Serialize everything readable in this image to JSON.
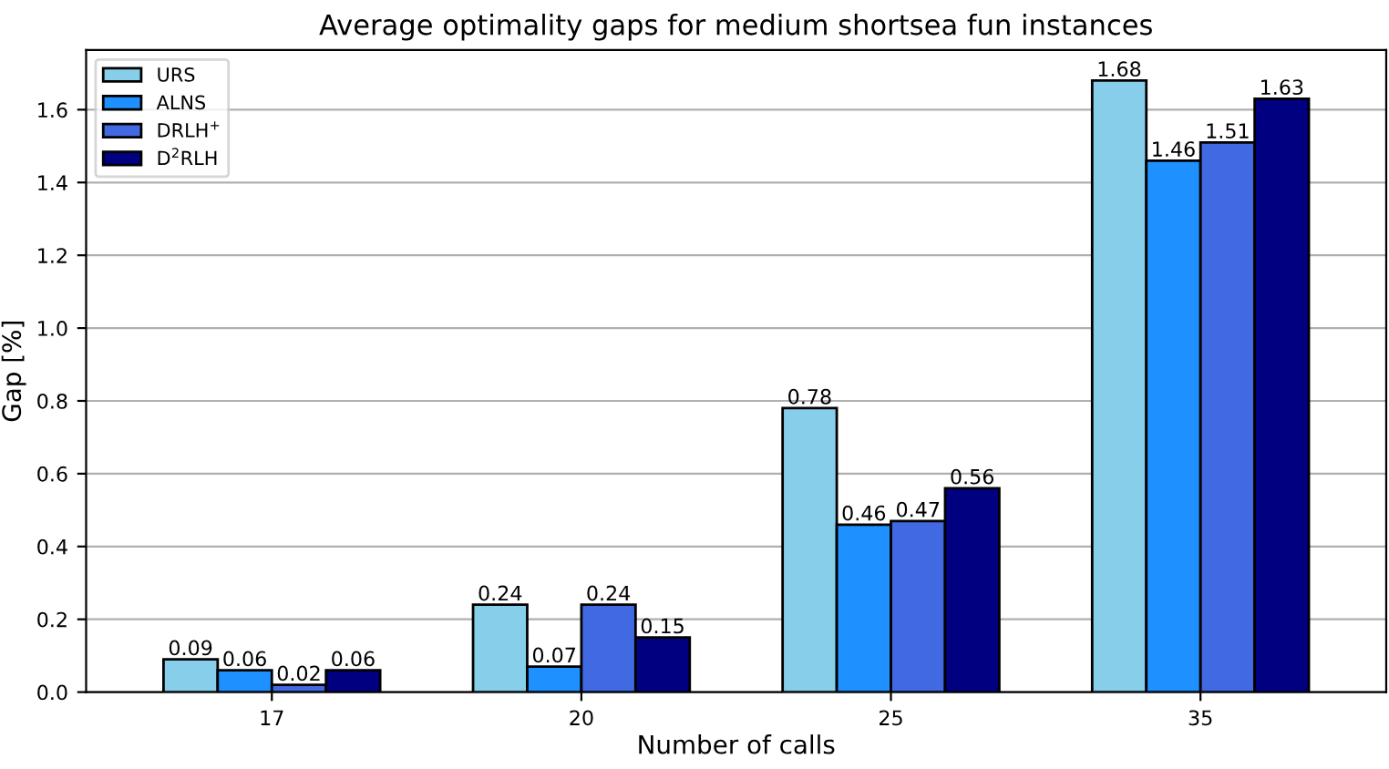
{
  "chart_data": {
    "type": "bar",
    "title": "Average optimality gaps for medium shortsea fun instances",
    "xlabel": "Number of calls",
    "ylabel": "Gap [%]",
    "categories": [
      "17",
      "20",
      "25",
      "35"
    ],
    "series": [
      {
        "name": "URS",
        "color": "#87ceeb",
        "values": [
          0.09,
          0.24,
          0.78,
          1.68
        ]
      },
      {
        "name": "ALNS",
        "color": "#1e90ff",
        "values": [
          0.06,
          0.07,
          0.46,
          1.46
        ]
      },
      {
        "name": "DRLH$^{+}$",
        "color": "#4169e1",
        "values": [
          0.02,
          0.24,
          0.47,
          1.51
        ]
      },
      {
        "name": "D$^{2}$RLH",
        "color": "#000080",
        "values": [
          0.06,
          0.15,
          0.56,
          1.63
        ]
      }
    ],
    "ylim": [
      0,
      1.764
    ],
    "yticks": [
      {
        "value": 0,
        "label": "0.0"
      },
      0.2,
      0.4,
      0.6,
      0.8,
      {
        "value": 1,
        "label": "1.0"
      },
      1.2,
      1.4,
      1.6
    ],
    "grid": "y",
    "legend": "top left",
    "data_labels": true
  }
}
